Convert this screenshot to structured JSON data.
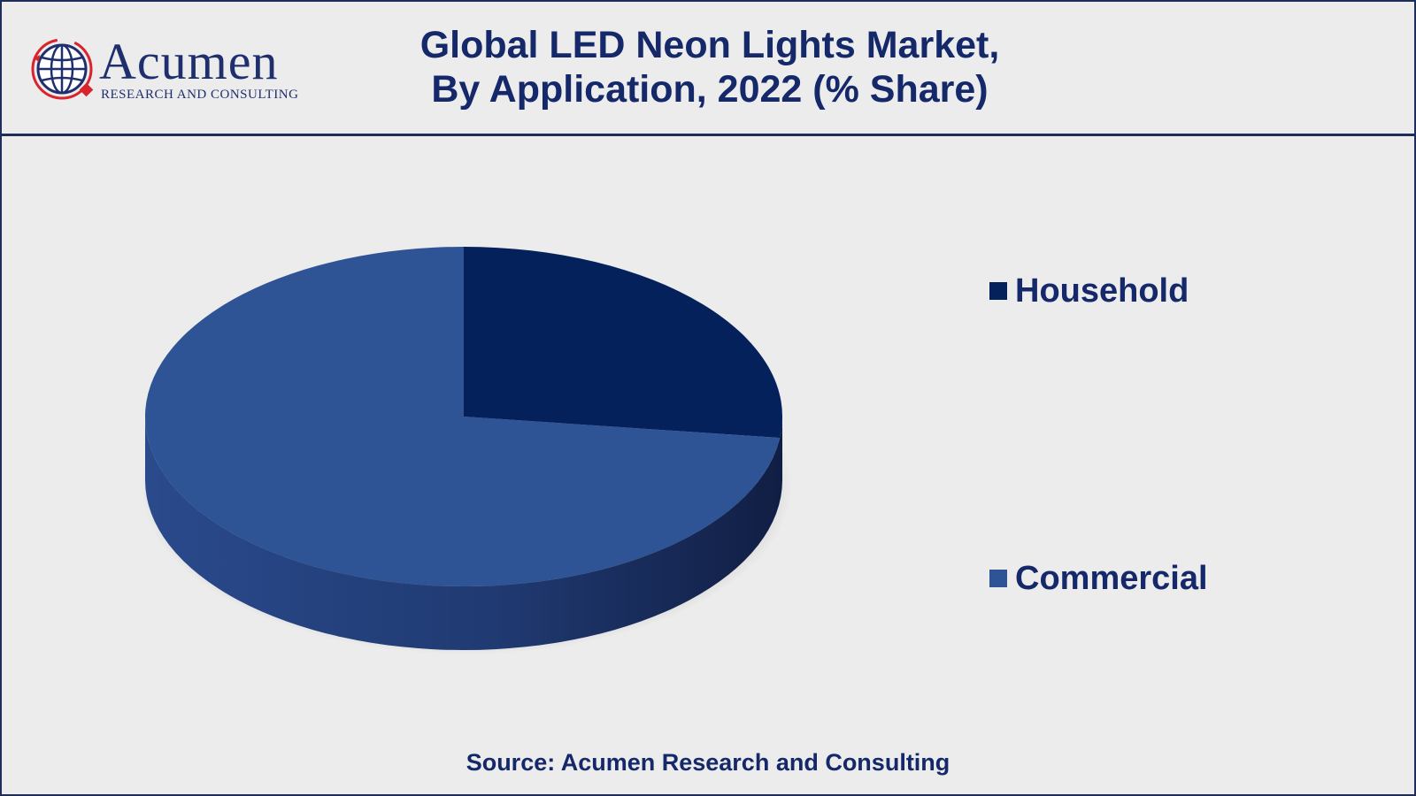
{
  "header": {
    "logo": {
      "name": "Acumen",
      "subtitle": "RESEARCH AND CONSULTING",
      "icon": "globe-icon"
    },
    "title_lines": [
      "Global LED Neon Lights Market,",
      "By Application, 2022 (% Share)"
    ]
  },
  "chart_data": {
    "type": "pie",
    "title": "Global LED Neon Lights Market, By Application, 2022 (% Share)",
    "style": "3d",
    "categories": [
      "Household",
      "Commercial"
    ],
    "values": [
      27,
      73
    ],
    "colors": [
      "#05215c",
      "#2f5496"
    ],
    "legend_position": "right"
  },
  "legend": {
    "items": [
      {
        "label": "Household"
      },
      {
        "label": "Commercial"
      }
    ]
  },
  "footer": {
    "source": "Source: Acumen Research and Consulting"
  }
}
